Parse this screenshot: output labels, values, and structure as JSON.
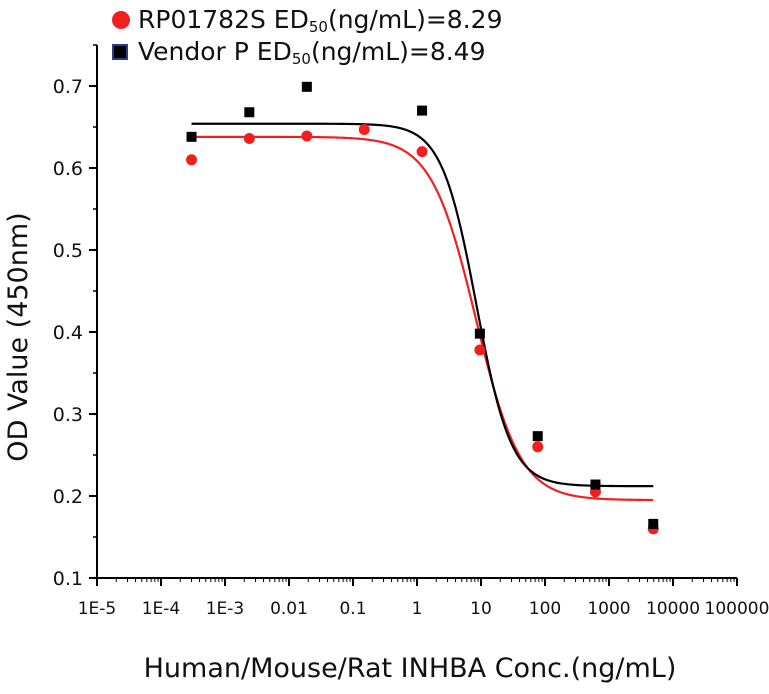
{
  "legend": {
    "s1": {
      "prefix": "RP01782S ED",
      "sub": "50",
      "suffix": "(ng/mL)=8.29"
    },
    "s2": {
      "prefix": "Vendor P ED",
      "sub": "50",
      "suffix": "(ng/mL)=8.49"
    }
  },
  "chart_data": {
    "type": "scatter",
    "title": "",
    "xlabel": "Human/Mouse/Rat INHBA Conc.(ng/mL)",
    "ylabel": "OD Value (450nm)",
    "xscale": "log",
    "xlim": [
      1e-05,
      100000
    ],
    "ylim": [
      0.1,
      0.75
    ],
    "x_ticks": [
      "1E-5",
      "1E-4",
      "1E-3",
      "0.01",
      "0.1",
      "1",
      "10",
      "100",
      "1000",
      "10000",
      "100000"
    ],
    "y_ticks": [
      "0.1",
      "0.2",
      "0.3",
      "0.4",
      "0.5",
      "0.6",
      "0.7"
    ],
    "legend_position": "top-left",
    "series": [
      {
        "name": "RP01782S",
        "ed50": 8.29,
        "color": "#f02020",
        "marker": "circle",
        "x": [
          0.0003,
          0.0024,
          0.019,
          0.15,
          1.2,
          9.6,
          77,
          614,
          4915
        ],
        "y": [
          0.61,
          0.636,
          0.639,
          0.647,
          0.62,
          0.378,
          0.26,
          0.205,
          0.16
        ],
        "fit": {
          "bottom": 0.195,
          "top": 0.638,
          "ec50": 8.29,
          "hill": 1.25
        }
      },
      {
        "name": "Vendor P",
        "ed50": 8.49,
        "color": "#000000",
        "marker": "square",
        "x": [
          0.0003,
          0.0024,
          0.019,
          1.2,
          9.6,
          77,
          614,
          4915
        ],
        "y": [
          0.638,
          0.668,
          0.699,
          0.67,
          0.398,
          0.273,
          0.214,
          0.166
        ],
        "fit": {
          "bottom": 0.212,
          "top": 0.654,
          "ec50": 8.49,
          "hill": 1.6
        }
      }
    ]
  }
}
